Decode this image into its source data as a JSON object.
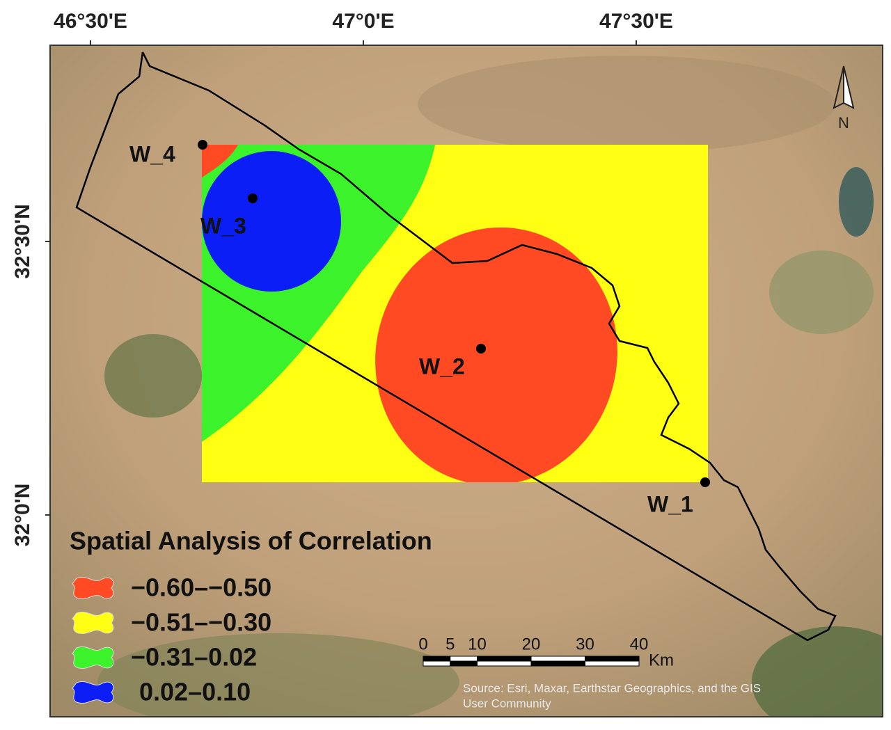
{
  "map": {
    "longitude_ticks": [
      {
        "value": 46.5,
        "label": "46°30'E"
      },
      {
        "value": 47.0,
        "label": "47°0'E"
      },
      {
        "value": 47.5,
        "label": "47°30'E"
      }
    ],
    "latitude_ticks": [
      {
        "value": 32.5,
        "label": "32°30'N"
      },
      {
        "value": 32.0,
        "label": "32°0'N"
      }
    ],
    "wells": [
      "W_1",
      "W_2",
      "W_3",
      "W_4"
    ],
    "north_arrow": "N",
    "legend": {
      "title": "Spatial Analysis of Correlation",
      "items": [
        {
          "label": "−0.60–−0.50",
          "color": "#ff4a24"
        },
        {
          "label": "−0.51–−0.30",
          "color": "#ffff14"
        },
        {
          "label": "−0.31–0.02",
          "color": "#3cf22a"
        },
        {
          "label": "0.02–0.10",
          "color": "#0a1ef5"
        }
      ]
    },
    "scale_bar": {
      "ticks": [
        0,
        5,
        10,
        20,
        30,
        40
      ],
      "unit": "Km"
    },
    "source": [
      "Source: Esri, Maxar, Earthstar Geographics, and the GIS",
      "User Community"
    ]
  }
}
